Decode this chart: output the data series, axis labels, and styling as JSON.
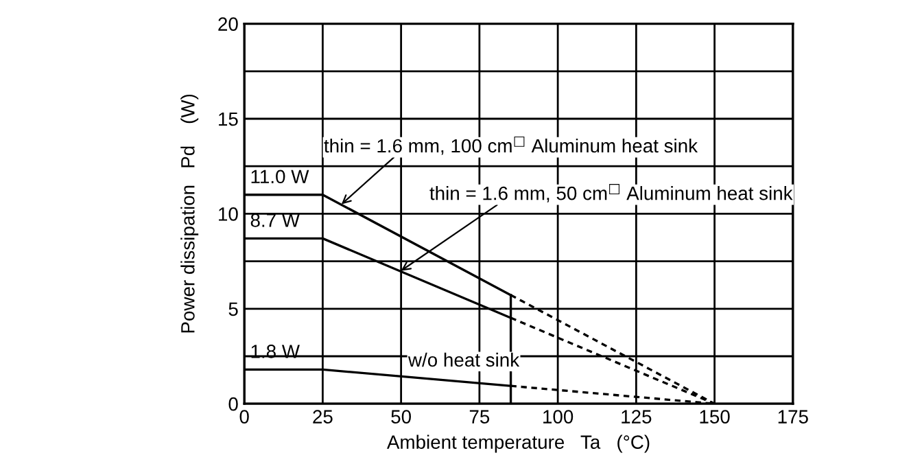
{
  "chart_data": {
    "type": "line",
    "xlabel": "Ambient temperature   Ta   (°C)",
    "ylabel": "Power dissipation   Pd    (W)",
    "series": [
      {
        "color": "#000000",
        "x": [
          0,
          25,
          85
        ],
        "values": [
          11.0,
          11.0,
          5.72
        ],
        "line_style": "solid"
      },
      {
        "color": "#000000",
        "x": [
          85,
          150
        ],
        "values": [
          5.72,
          0
        ],
        "line_style": "dashed"
      },
      {
        "color": "#000000",
        "x": [
          0,
          25,
          85
        ],
        "values": [
          8.7,
          8.7,
          4.52
        ],
        "line_style": "solid"
      },
      {
        "color": "#000000",
        "x": [
          85,
          150
        ],
        "values": [
          4.52,
          0
        ],
        "line_style": "dashed"
      },
      {
        "color": "#000000",
        "x": [
          0,
          25,
          85
        ],
        "values": [
          1.8,
          1.8,
          0.94
        ],
        "line_style": "solid"
      },
      {
        "color": "#000000",
        "x": [
          85,
          150
        ],
        "values": [
          0.94,
          0
        ],
        "line_style": "dashed"
      },
      {
        "color": "#000000",
        "x": [
          85,
          85
        ],
        "values": [
          0,
          5.72
        ],
        "line_style": "solid"
      }
    ],
    "annotations": [
      {
        "text": "11.0 W",
        "x": 0,
        "y": 11.0
      },
      {
        "text": "8.7 W",
        "x": 0,
        "y": 8.7
      },
      {
        "text": "1.8 W",
        "x": 0,
        "y": 1.8
      },
      {
        "text": "thin = 1.6 mm, 100 cm$^{□}$ Aluminum heat sink",
        "x": 31,
        "y": 10.5
      },
      {
        "text": "thin = 1.6 mm, 50 cm$^{□}$ Aluminum heat sink",
        "x": 50,
        "y": 7.0
      },
      {
        "text": "w/o heat sink",
        "x": 70,
        "y": 1.15
      }
    ],
    "xlim": [
      0,
      175
    ],
    "ylim": [
      0,
      20
    ],
    "xticks": [
      0,
      25,
      50,
      75,
      100,
      125,
      150,
      175
    ],
    "yticks": [
      0,
      {
        "value": 2.5,
        "label": null
      },
      5,
      {
        "value": 7.5,
        "label": null
      },
      10,
      {
        "value": 12.5,
        "label": null
      },
      15,
      {
        "value": 17.5,
        "label": null
      },
      20
    ],
    "grid": true,
    "legend": false,
    "marker": "none"
  }
}
